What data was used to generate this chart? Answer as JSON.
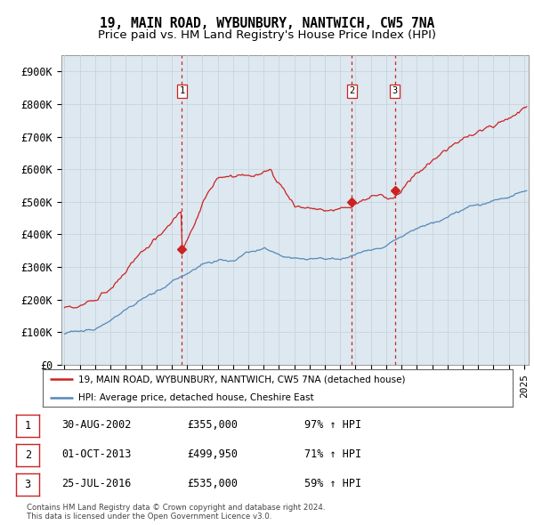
{
  "title": "19, MAIN ROAD, WYBUNBURY, NANTWICH, CW5 7NA",
  "subtitle": "Price paid vs. HM Land Registry's House Price Index (HPI)",
  "ylabel_ticks": [
    "£0",
    "£100K",
    "£200K",
    "£300K",
    "£400K",
    "£500K",
    "£600K",
    "£700K",
    "£800K",
    "£900K"
  ],
  "ytick_values": [
    0,
    100000,
    200000,
    300000,
    400000,
    500000,
    600000,
    700000,
    800000,
    900000
  ],
  "ylim": [
    0,
    950000
  ],
  "hpi_color": "#5588bb",
  "price_color": "#cc2222",
  "vline_color": "#cc2222",
  "chart_bg": "#dde8f0",
  "transaction_markers": [
    {
      "date_num": 2002.67,
      "price": 355000,
      "label": "1"
    },
    {
      "date_num": 2013.75,
      "price": 499950,
      "label": "2"
    },
    {
      "date_num": 2016.56,
      "price": 535000,
      "label": "3"
    }
  ],
  "legend_entries": [
    {
      "color": "#cc2222",
      "label": "19, MAIN ROAD, WYBUNBURY, NANTWICH, CW5 7NA (detached house)"
    },
    {
      "color": "#5588bb",
      "label": "HPI: Average price, detached house, Cheshire East"
    }
  ],
  "table_rows": [
    [
      "1",
      "30-AUG-2002",
      "£355,000",
      "97% ↑ HPI"
    ],
    [
      "2",
      "01-OCT-2013",
      "£499,950",
      "71% ↑ HPI"
    ],
    [
      "3",
      "25-JUL-2016",
      "£535,000",
      "59% ↑ HPI"
    ]
  ],
  "footnote": "Contains HM Land Registry data © Crown copyright and database right 2024.\nThis data is licensed under the Open Government Licence v3.0.",
  "background_color": "#ffffff",
  "grid_color": "#c8d4dc",
  "title_fontsize": 10.5,
  "subtitle_fontsize": 9.5,
  "tick_fontsize": 8.5
}
